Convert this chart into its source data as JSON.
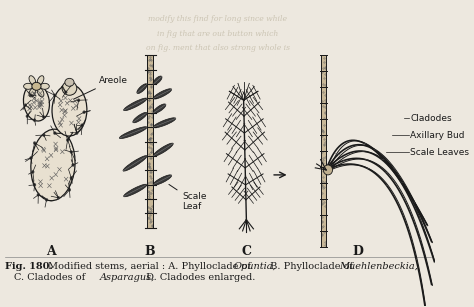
{
  "bg_color": "#ede8df",
  "fig_width": 4.74,
  "fig_height": 3.07,
  "dpi": 100,
  "label_areole": "Areole",
  "label_scale_leaf": "Scale\nLeaf",
  "label_cladodes": "Cladodes",
  "label_axillary_bud": "Axillary Bud",
  "label_scale_leaves": "Scale Leaves",
  "caption_bold": "Fig. 180.",
  "caption_normal": " Modified stems, aerial : ",
  "caption_A_text": "A. Phylloclade of ",
  "caption_opuntia": "Opuntia,",
  "caption_B_text": " B. Phylloclade of ",
  "caption_muehl": "Muehlenbeckia,",
  "caption_line2_pre": "C. Cladodes of ",
  "caption_asparagus": "Asparagus,",
  "caption_line2_post": " D. Cladodes enlarged.",
  "watermark_lines": [
    "modify this find for long since while",
    "in fig that are out button which",
    "on fig. ment that also strong whole is"
  ],
  "ink": "#1a1a1a",
  "stem_fill": "#b0a090",
  "label_A": "A",
  "label_B": "B",
  "label_C": "C",
  "label_D": "D"
}
